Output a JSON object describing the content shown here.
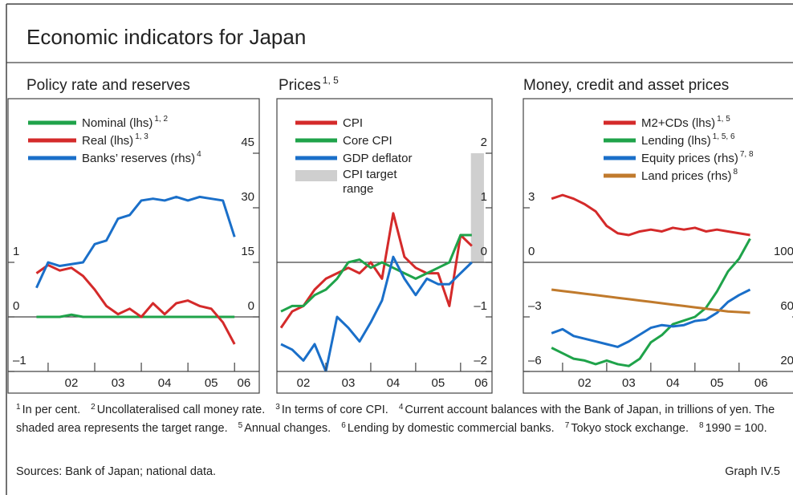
{
  "title": "Economic indicators for Japan",
  "chart_data": [
    {
      "type": "line",
      "title": "Policy rate and reserves",
      "x": [
        2001.75,
        2002.0,
        2002.25,
        2002.5,
        2002.75,
        2003.0,
        2003.25,
        2003.5,
        2003.75,
        2004.0,
        2004.25,
        2004.5,
        2004.75,
        2005.0,
        2005.25,
        2005.5,
        2005.75,
        2006.0
      ],
      "series": [
        {
          "name": "Nominal (lhs)",
          "sup": "1, 2",
          "color": "#1fa34a",
          "axis": "y",
          "values": [
            0,
            0,
            0,
            0.04,
            0,
            0,
            0,
            0,
            0,
            0,
            0,
            0,
            0,
            0,
            0,
            0,
            0,
            0
          ]
        },
        {
          "name": "Real (lhs)",
          "sup": "1, 3",
          "color": "#d42a2a",
          "axis": "y",
          "values": [
            0.8,
            0.95,
            0.85,
            0.9,
            0.75,
            0.5,
            0.2,
            0.05,
            0.15,
            0.0,
            0.25,
            0.05,
            0.25,
            0.3,
            0.2,
            0.15,
            -0.1,
            -0.5
          ]
        },
        {
          "name": "Banks’ reserves (rhs)",
          "sup": "4",
          "color": "#1a6fc9",
          "axis": "y2",
          "values": [
            8,
            15,
            14,
            14.5,
            15,
            20,
            21,
            27,
            28,
            32,
            32.5,
            32,
            33,
            32,
            33,
            32.5,
            32,
            22
          ]
        }
      ],
      "bands": {
        "color": "#cfcfcf",
        "axis": "y2",
        "ranges": [
          [
            1995.0,
            1995.0,
            0,
            0
          ]
        ]
      },
      "xlim": [
        2001.14,
        2006.53
      ],
      "xticks": [
        {
          "value": 2002.5,
          "label": "02"
        },
        {
          "value": 2003.5,
          "label": "03"
        },
        {
          "value": 2004.5,
          "label": "04"
        },
        {
          "value": 2005.5,
          "label": "05"
        },
        {
          "value": 2006.2,
          "label": "06"
        }
      ],
      "xtick_marks": [
        2002,
        2003,
        2004,
        2005,
        2006
      ],
      "ylim": [
        -1,
        4
      ],
      "yticks": [
        {
          "value": -1,
          "label": "–1"
        },
        0,
        1
      ],
      "y2lim": [
        -15,
        60
      ],
      "y2ticks": [
        0,
        15,
        30,
        45
      ],
      "zero_line": true
    },
    {
      "type": "line",
      "title": "Prices",
      "title_sup": "1, 5",
      "x": [
        2002.0,
        2002.25,
        2002.5,
        2002.75,
        2003.0,
        2003.25,
        2003.5,
        2003.75,
        2004.0,
        2004.25,
        2004.5,
        2004.75,
        2005.0,
        2005.25,
        2005.5,
        2005.75,
        2006.0,
        2006.25
      ],
      "series": [
        {
          "name": "CPI",
          "color": "#d42a2a",
          "axis": "y",
          "values": [
            -1.2,
            -0.9,
            -0.8,
            -0.5,
            -0.3,
            -0.2,
            -0.1,
            -0.2,
            0.0,
            -0.3,
            0.9,
            0.1,
            -0.1,
            -0.2,
            -0.2,
            -0.8,
            0.5,
            0.3
          ]
        },
        {
          "name": "Core CPI",
          "color": "#1fa34a",
          "axis": "y",
          "values": [
            -0.9,
            -0.8,
            -0.8,
            -0.6,
            -0.5,
            -0.3,
            0.0,
            0.05,
            -0.1,
            0.0,
            -0.1,
            -0.2,
            -0.3,
            -0.2,
            -0.1,
            0.0,
            0.5,
            0.5
          ]
        },
        {
          "name": "GDP deflator",
          "color": "#1a6fc9",
          "axis": "y",
          "values": [
            -1.5,
            -1.6,
            -1.8,
            -1.5,
            -2.0,
            -1.0,
            -1.2,
            -1.45,
            -1.1,
            -0.7,
            0.1,
            -0.3,
            -0.6,
            -0.3,
            -0.4,
            -0.4,
            -0.2,
            0.0
          ]
        }
      ],
      "bands": {
        "name": "CPI target range",
        "color": "#cfcfcf",
        "axis": "y",
        "ranges": [
          [
            2006.23,
            2006.52,
            0,
            2
          ]
        ]
      },
      "xlim": [
        2001.91,
        2006.7
      ],
      "xticks": [
        {
          "value": 2002.5,
          "label": "02"
        },
        {
          "value": 2003.5,
          "label": "03"
        },
        {
          "value": 2004.5,
          "label": "04"
        },
        {
          "value": 2005.5,
          "label": "05"
        },
        {
          "value": 2006.46,
          "label": "06"
        }
      ],
      "xtick_marks": [
        2003,
        2004,
        2005,
        2006
      ],
      "ylim": [
        -2,
        3
      ],
      "yticks": [
        {
          "value": -2,
          "label": "–2"
        },
        {
          "value": -1,
          "label": "–1"
        },
        0,
        1,
        2
      ],
      "ytick_side": "right",
      "zero_line": true
    },
    {
      "type": "line",
      "title": "Money, credit and asset prices",
      "x": [
        2001.75,
        2002.0,
        2002.25,
        2002.5,
        2002.75,
        2003.0,
        2003.25,
        2003.5,
        2003.75,
        2004.0,
        2004.25,
        2004.5,
        2004.75,
        2005.0,
        2005.25,
        2005.5,
        2005.75,
        2006.0,
        2006.25
      ],
      "series": [
        {
          "name": "M2+CDs (lhs)",
          "sup": "1, 5",
          "color": "#d42a2a",
          "axis": "y",
          "values": [
            3.5,
            3.7,
            3.5,
            3.2,
            2.8,
            2.0,
            1.6,
            1.5,
            1.7,
            1.8,
            1.7,
            1.9,
            1.8,
            1.9,
            1.7,
            1.8,
            1.7,
            1.6,
            1.5
          ]
        },
        {
          "name": "Lending (lhs)",
          "sup": "1, 5, 6",
          "color": "#1fa34a",
          "axis": "y",
          "values": [
            -4.7,
            -5.0,
            -5.3,
            -5.4,
            -5.6,
            -5.4,
            -5.6,
            -5.7,
            -5.3,
            -4.4,
            -4.0,
            -3.4,
            -3.2,
            -3.0,
            -2.5,
            -1.6,
            -0.5,
            0.2,
            1.3
          ]
        },
        {
          "name": "Equity prices (rhs)",
          "sup": "7, 8",
          "color": "#1a6fc9",
          "axis": "y2",
          "values": [
            48,
            51,
            46,
            44,
            42,
            40,
            38,
            42,
            47,
            52,
            54,
            53,
            54,
            57,
            58,
            63,
            71,
            76,
            80
          ]
        },
        {
          "name": "Land prices (rhs)",
          "sup": "8",
          "color": "#c07a2c",
          "axis": "y2",
          "values": [
            80,
            79,
            78,
            77,
            76,
            75,
            74,
            73,
            72,
            71,
            70,
            69,
            68,
            67,
            66,
            65,
            64,
            63.5,
            63
          ]
        }
      ],
      "xlim": [
        2001.11,
        2007.35
      ],
      "xticks": [
        {
          "value": 2002.5,
          "label": "02"
        },
        {
          "value": 2003.5,
          "label": "03"
        },
        {
          "value": 2004.5,
          "label": "04"
        },
        {
          "value": 2005.5,
          "label": "05"
        },
        {
          "value": 2006.5,
          "label": "06"
        }
      ],
      "xtick_marks": [
        2002,
        2003,
        2004,
        2005,
        2006
      ],
      "ylim": [
        -6,
        9
      ],
      "yticks": [
        {
          "value": -6,
          "label": "–6"
        },
        {
          "value": -3,
          "label": "–3"
        },
        0,
        3
      ],
      "y2lim": [
        20,
        220
      ],
      "y2ticks": [
        20,
        60,
        100
      ],
      "zero_line": true
    }
  ],
  "footnotes": [
    {
      "mark": "1",
      "text": "In per cent."
    },
    {
      "mark": "2",
      "text": "Uncollateralised call money rate."
    },
    {
      "mark": "3",
      "text": "In terms of core CPI."
    },
    {
      "mark": "4",
      "text": "Current account balances with the Bank of Japan, in trillions of yen. The shaded area represents the target range."
    },
    {
      "mark": "5",
      "text": "Annual changes."
    },
    {
      "mark": "6",
      "text": "Lending by domestic commercial banks."
    },
    {
      "mark": "7",
      "text": "Tokyo stock exchange."
    },
    {
      "mark": "8",
      "text": "1990 = 100."
    }
  ],
  "sources": "Sources: Bank of Japan; national data.",
  "graph_label": "Graph IV.5"
}
